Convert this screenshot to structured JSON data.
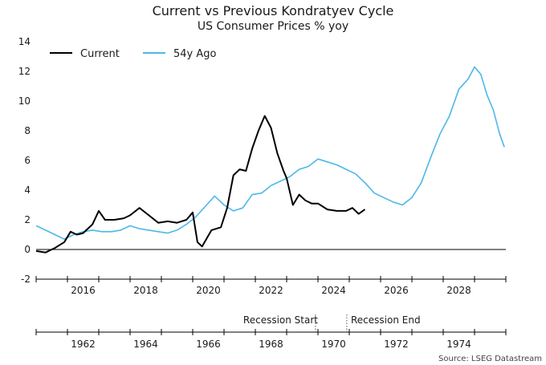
{
  "title": "Current vs Previous Kondratyev Cycle",
  "subtitle": "US Consumer Prices % yoy",
  "source": "Source: LSEG Datastream",
  "legend": {
    "current": "Current",
    "previous": "54y Ago"
  },
  "annotations": {
    "recession_start": "Recession Start",
    "recession_end": "Recession End"
  },
  "colors": {
    "current": "#000000",
    "previous": "#4db8e8"
  },
  "chart_data": {
    "type": "line",
    "y_ticks": [
      -2,
      0,
      2,
      4,
      6,
      8,
      10,
      12,
      14
    ],
    "ylim": [
      -2,
      14
    ],
    "x_top_range": [
      2015.0,
      2030.0
    ],
    "x_top_ticks": [
      "2016",
      "2018",
      "2020",
      "2022",
      "2024",
      "2026",
      "2028"
    ],
    "x_bottom_ticks": [
      "1962",
      "1964",
      "1966",
      "1968",
      "1970",
      "1972",
      "1974"
    ],
    "recession_markers": [
      1969.92,
      1970.92
    ],
    "series": [
      {
        "name": "Current",
        "x": [
          2015.0,
          2015.3,
          2015.6,
          2015.9,
          2016.1,
          2016.3,
          2016.5,
          2016.8,
          2017.0,
          2017.2,
          2017.5,
          2017.8,
          2018.0,
          2018.3,
          2018.6,
          2018.9,
          2019.2,
          2019.5,
          2019.8,
          2020.0,
          2020.15,
          2020.3,
          2020.6,
          2020.9,
          2021.1,
          2021.3,
          2021.5,
          2021.7,
          2021.9,
          2022.1,
          2022.3,
          2022.5,
          2022.7,
          2022.9,
          2023.0,
          2023.2,
          2023.4,
          2023.6,
          2023.8,
          2024.0,
          2024.3,
          2024.6,
          2024.9,
          2025.1,
          2025.3,
          2025.5
        ],
        "y": [
          -0.1,
          -0.2,
          0.1,
          0.5,
          1.2,
          1.0,
          1.1,
          1.7,
          2.6,
          2.0,
          2.0,
          2.1,
          2.3,
          2.8,
          2.3,
          1.8,
          1.9,
          1.8,
          2.0,
          2.5,
          0.5,
          0.2,
          1.3,
          1.5,
          2.8,
          5.0,
          5.4,
          5.3,
          6.8,
          8.0,
          9.0,
          8.2,
          6.5,
          5.3,
          4.8,
          3.0,
          3.7,
          3.3,
          3.1,
          3.1,
          2.7,
          2.6,
          2.6,
          2.8,
          2.4,
          2.7
        ]
      },
      {
        "name": "54y Ago",
        "x": [
          2015.0,
          2015.3,
          2015.6,
          2015.9,
          2016.2,
          2016.5,
          2016.8,
          2017.1,
          2017.4,
          2017.7,
          2018.0,
          2018.3,
          2018.6,
          2018.9,
          2019.2,
          2019.5,
          2019.8,
          2020.1,
          2020.4,
          2020.7,
          2021.0,
          2021.3,
          2021.6,
          2021.9,
          2022.2,
          2022.5,
          2022.8,
          2023.1,
          2023.4,
          2023.7,
          2024.0,
          2024.3,
          2024.6,
          2024.9,
          2025.2,
          2025.5,
          2025.8,
          2026.1,
          2026.4,
          2026.7,
          2027.0,
          2027.3,
          2027.6,
          2027.9,
          2028.2,
          2028.5,
          2028.8,
          2029.0,
          2029.2,
          2029.4,
          2029.6,
          2029.8,
          2029.95
        ],
        "y": [
          1.6,
          1.3,
          1.0,
          0.7,
          1.0,
          1.2,
          1.3,
          1.2,
          1.2,
          1.3,
          1.6,
          1.4,
          1.3,
          1.2,
          1.1,
          1.3,
          1.7,
          2.2,
          2.9,
          3.6,
          3.0,
          2.6,
          2.8,
          3.7,
          3.8,
          4.3,
          4.6,
          4.9,
          5.4,
          5.6,
          6.1,
          5.9,
          5.7,
          5.4,
          5.1,
          4.5,
          3.8,
          3.5,
          3.2,
          3.0,
          3.5,
          4.5,
          6.2,
          7.8,
          9.0,
          10.8,
          11.5,
          12.3,
          11.8,
          10.4,
          9.4,
          7.8,
          6.9
        ]
      }
    ]
  }
}
